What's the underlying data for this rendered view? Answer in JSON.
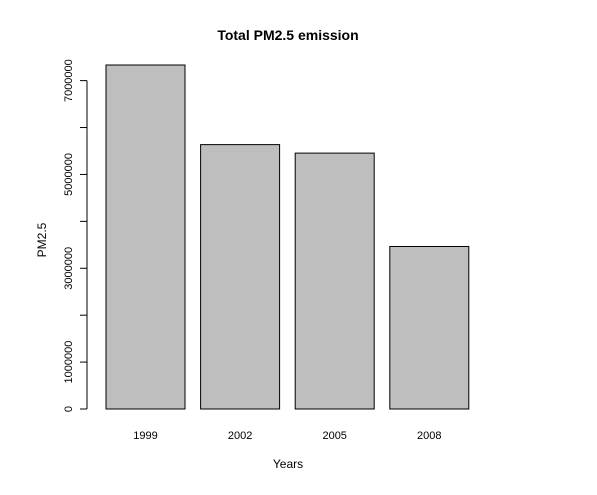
{
  "chart_data": {
    "type": "bar",
    "title": "Total PM2.5 emission",
    "xlabel": "Years",
    "ylabel": "PM2.5",
    "categories": [
      "1999",
      "2002",
      "2005",
      "2008"
    ],
    "values": [
      7332967,
      5635780,
      5454703,
      3464206
    ],
    "ylim": [
      0,
      7332967
    ],
    "yticks": [
      0,
      1000000,
      2000000,
      3000000,
      4000000,
      5000000,
      6000000,
      7000000
    ],
    "yticklabels": [
      "0",
      "1000000",
      "",
      "3000000",
      "",
      "5000000",
      "",
      "7000000"
    ],
    "grid": false,
    "legend": "none",
    "bar_fill": "#bebebe",
    "bar_stroke": "#000000"
  }
}
